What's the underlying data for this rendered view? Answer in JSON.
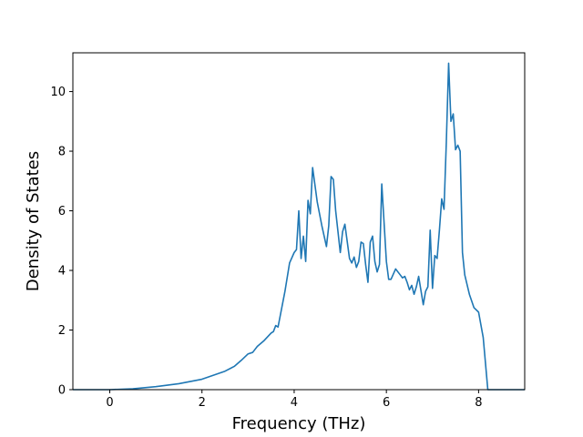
{
  "chart_data": {
    "type": "line",
    "title": "",
    "xlabel": "Frequency (THz)",
    "ylabel": "Density of States",
    "xlim": [
      -0.8,
      9.0
    ],
    "ylim": [
      0,
      11.3
    ],
    "xticks": [
      0,
      2,
      4,
      6,
      8
    ],
    "yticks": [
      0,
      2,
      4,
      6,
      8,
      10
    ],
    "grid": false,
    "legend": "none",
    "series": [
      {
        "color": "#1f77b4",
        "x": [
          -0.8,
          0.0,
          0.5,
          1.0,
          1.5,
          2.0,
          2.5,
          2.7,
          2.85,
          3.0,
          3.1,
          3.2,
          3.35,
          3.5,
          3.55,
          3.6,
          3.65,
          3.7,
          3.8,
          3.9,
          4.0,
          4.05,
          4.1,
          4.15,
          4.2,
          4.25,
          4.3,
          4.35,
          4.4,
          4.5,
          4.6,
          4.7,
          4.75,
          4.8,
          4.85,
          4.9,
          5.0,
          5.05,
          5.1,
          5.2,
          5.25,
          5.3,
          5.35,
          5.4,
          5.45,
          5.5,
          5.55,
          5.6,
          5.65,
          5.7,
          5.75,
          5.8,
          5.85,
          5.9,
          6.0,
          6.05,
          6.1,
          6.2,
          6.3,
          6.35,
          6.4,
          6.45,
          6.5,
          6.55,
          6.6,
          6.65,
          6.7,
          6.8,
          6.85,
          6.9,
          6.95,
          7.0,
          7.05,
          7.1,
          7.15,
          7.2,
          7.25,
          7.3,
          7.35,
          7.4,
          7.45,
          7.5,
          7.55,
          7.6,
          7.65,
          7.7,
          7.8,
          7.9,
          8.0,
          8.1,
          8.2,
          8.25,
          8.5,
          9.0
        ],
        "values": [
          0,
          0,
          0.03,
          0.1,
          0.2,
          0.35,
          0.62,
          0.78,
          0.98,
          1.2,
          1.25,
          1.45,
          1.65,
          1.9,
          1.95,
          2.15,
          2.1,
          2.5,
          3.3,
          4.25,
          4.6,
          4.7,
          6.0,
          4.4,
          5.15,
          4.3,
          6.35,
          5.9,
          7.45,
          6.3,
          5.5,
          4.8,
          5.5,
          7.15,
          7.05,
          6.0,
          4.6,
          5.3,
          5.55,
          4.4,
          4.25,
          4.45,
          4.1,
          4.3,
          4.95,
          4.9,
          4.2,
          3.6,
          4.95,
          5.15,
          4.3,
          3.95,
          4.2,
          6.9,
          4.3,
          3.7,
          3.7,
          4.05,
          3.85,
          3.75,
          3.8,
          3.6,
          3.35,
          3.5,
          3.2,
          3.45,
          3.8,
          2.85,
          3.3,
          3.45,
          5.35,
          3.4,
          4.5,
          4.4,
          5.35,
          6.4,
          6.05,
          8.3,
          10.95,
          9.0,
          9.25,
          8.05,
          8.2,
          8.0,
          4.6,
          3.85,
          3.2,
          2.75,
          2.6,
          1.75,
          0.0,
          0.0,
          0.0,
          0.0
        ]
      }
    ]
  }
}
